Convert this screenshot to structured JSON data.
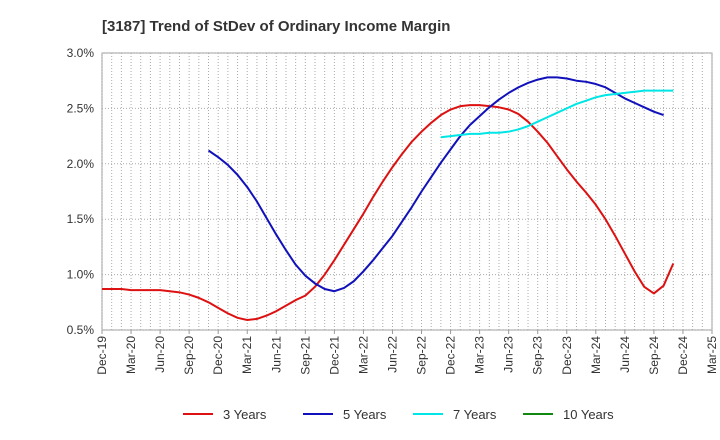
{
  "chart_data": {
    "type": "line",
    "title": "[3187]  Trend of StDev of Ordinary Income Margin",
    "xlabel": "",
    "ylabel": "",
    "x_ticks": [
      "Dec-19",
      "Mar-20",
      "Jun-20",
      "Sep-20",
      "Dec-20",
      "Mar-21",
      "Jun-21",
      "Sep-21",
      "Dec-21",
      "Mar-22",
      "Jun-22",
      "Sep-22",
      "Dec-22",
      "Mar-23",
      "Jun-23",
      "Sep-23",
      "Dec-23",
      "Mar-24",
      "Jun-24",
      "Sep-24",
      "Dec-24",
      "Mar-25"
    ],
    "y_ticks": [
      "0.5%",
      "1.0%",
      "1.5%",
      "2.0%",
      "2.5%",
      "3.0%"
    ],
    "ylim": [
      0.5,
      3.0
    ],
    "y_unit": "%",
    "grid": true,
    "legend_position": "bottom",
    "series": [
      {
        "name": "3 Years",
        "color": "#dd1111",
        "points": [
          [
            "Dec-19",
            0.87
          ],
          [
            "Jan-20",
            0.87
          ],
          [
            "Feb-20",
            0.87
          ],
          [
            "Mar-20",
            0.86
          ],
          [
            "Apr-20",
            0.86
          ],
          [
            "May-20",
            0.86
          ],
          [
            "Jun-20",
            0.86
          ],
          [
            "Jul-20",
            0.85
          ],
          [
            "Aug-20",
            0.84
          ],
          [
            "Sep-20",
            0.82
          ],
          [
            "Oct-20",
            0.79
          ],
          [
            "Nov-20",
            0.75
          ],
          [
            "Dec-20",
            0.7
          ],
          [
            "Jan-21",
            0.65
          ],
          [
            "Feb-21",
            0.61
          ],
          [
            "Mar-21",
            0.59
          ],
          [
            "Apr-21",
            0.6
          ],
          [
            "May-21",
            0.63
          ],
          [
            "Jun-21",
            0.67
          ],
          [
            "Jul-21",
            0.72
          ],
          [
            "Aug-21",
            0.77
          ],
          [
            "Sep-21",
            0.81
          ],
          [
            "Oct-21",
            0.89
          ],
          [
            "Nov-21",
            1.0
          ],
          [
            "Dec-21",
            1.13
          ],
          [
            "Jan-22",
            1.27
          ],
          [
            "Feb-22",
            1.41
          ],
          [
            "Mar-22",
            1.55
          ],
          [
            "Apr-22",
            1.7
          ],
          [
            "May-22",
            1.84
          ],
          [
            "Jun-22",
            1.97
          ],
          [
            "Jul-22",
            2.09
          ],
          [
            "Aug-22",
            2.2
          ],
          [
            "Sep-22",
            2.29
          ],
          [
            "Oct-22",
            2.37
          ],
          [
            "Nov-22",
            2.44
          ],
          [
            "Dec-22",
            2.49
          ],
          [
            "Jan-23",
            2.52
          ],
          [
            "Feb-23",
            2.53
          ],
          [
            "Mar-23",
            2.53
          ],
          [
            "Apr-23",
            2.52
          ],
          [
            "May-23",
            2.51
          ],
          [
            "Jun-23",
            2.49
          ],
          [
            "Jul-23",
            2.45
          ],
          [
            "Aug-23",
            2.38
          ],
          [
            "Sep-23",
            2.29
          ],
          [
            "Oct-23",
            2.19
          ],
          [
            "Nov-23",
            2.07
          ],
          [
            "Dec-23",
            1.95
          ],
          [
            "Jan-24",
            1.84
          ],
          [
            "Feb-24",
            1.74
          ],
          [
            "Mar-24",
            1.63
          ],
          [
            "Apr-24",
            1.5
          ],
          [
            "May-24",
            1.35
          ],
          [
            "Jun-24",
            1.19
          ],
          [
            "Jul-24",
            1.03
          ],
          [
            "Aug-24",
            0.89
          ],
          [
            "Sep-24",
            0.83
          ],
          [
            "Oct-24",
            0.9
          ],
          [
            "Nov-24",
            1.1
          ]
        ]
      },
      {
        "name": "5 Years",
        "color": "#1111bb",
        "points": [
          [
            "Nov-20",
            2.12
          ],
          [
            "Dec-20",
            2.06
          ],
          [
            "Jan-21",
            1.99
          ],
          [
            "Feb-21",
            1.9
          ],
          [
            "Mar-21",
            1.79
          ],
          [
            "Apr-21",
            1.66
          ],
          [
            "May-21",
            1.51
          ],
          [
            "Jun-21",
            1.36
          ],
          [
            "Jul-21",
            1.22
          ],
          [
            "Aug-21",
            1.09
          ],
          [
            "Sep-21",
            0.99
          ],
          [
            "Oct-21",
            0.92
          ],
          [
            "Nov-21",
            0.87
          ],
          [
            "Dec-21",
            0.85
          ],
          [
            "Jan-22",
            0.88
          ],
          [
            "Feb-22",
            0.94
          ],
          [
            "Mar-22",
            1.03
          ],
          [
            "Apr-22",
            1.13
          ],
          [
            "May-22",
            1.24
          ],
          [
            "Jun-22",
            1.35
          ],
          [
            "Jul-22",
            1.48
          ],
          [
            "Aug-22",
            1.61
          ],
          [
            "Sep-22",
            1.75
          ],
          [
            "Oct-22",
            1.88
          ],
          [
            "Nov-22",
            2.01
          ],
          [
            "Dec-22",
            2.13
          ],
          [
            "Jan-23",
            2.25
          ],
          [
            "Feb-23",
            2.35
          ],
          [
            "Mar-23",
            2.43
          ],
          [
            "Apr-23",
            2.51
          ],
          [
            "May-23",
            2.58
          ],
          [
            "Jun-23",
            2.64
          ],
          [
            "Jul-23",
            2.69
          ],
          [
            "Aug-23",
            2.73
          ],
          [
            "Sep-23",
            2.76
          ],
          [
            "Oct-23",
            2.78
          ],
          [
            "Nov-23",
            2.78
          ],
          [
            "Dec-23",
            2.77
          ],
          [
            "Jan-24",
            2.75
          ],
          [
            "Feb-24",
            2.74
          ],
          [
            "Mar-24",
            2.72
          ],
          [
            "Apr-24",
            2.69
          ],
          [
            "May-24",
            2.64
          ],
          [
            "Jun-24",
            2.59
          ],
          [
            "Jul-24",
            2.55
          ],
          [
            "Aug-24",
            2.51
          ],
          [
            "Sep-24",
            2.47
          ],
          [
            "Oct-24",
            2.44
          ]
        ]
      },
      {
        "name": "7 Years",
        "color": "#00e5e5",
        "points": [
          [
            "Nov-22",
            2.24
          ],
          [
            "Dec-22",
            2.25
          ],
          [
            "Jan-23",
            2.26
          ],
          [
            "Feb-23",
            2.27
          ],
          [
            "Mar-23",
            2.27
          ],
          [
            "Apr-23",
            2.28
          ],
          [
            "May-23",
            2.28
          ],
          [
            "Jun-23",
            2.29
          ],
          [
            "Jul-23",
            2.31
          ],
          [
            "Aug-23",
            2.34
          ],
          [
            "Sep-23",
            2.38
          ],
          [
            "Oct-23",
            2.42
          ],
          [
            "Nov-23",
            2.46
          ],
          [
            "Dec-23",
            2.5
          ],
          [
            "Jan-24",
            2.54
          ],
          [
            "Feb-24",
            2.57
          ],
          [
            "Mar-24",
            2.6
          ],
          [
            "Apr-24",
            2.62
          ],
          [
            "May-24",
            2.63
          ],
          [
            "Jun-24",
            2.64
          ],
          [
            "Jul-24",
            2.65
          ],
          [
            "Aug-24",
            2.66
          ],
          [
            "Sep-24",
            2.66
          ],
          [
            "Oct-24",
            2.66
          ],
          [
            "Nov-24",
            2.66
          ]
        ]
      },
      {
        "name": "10 Years",
        "color": "#118811",
        "points": []
      }
    ]
  }
}
